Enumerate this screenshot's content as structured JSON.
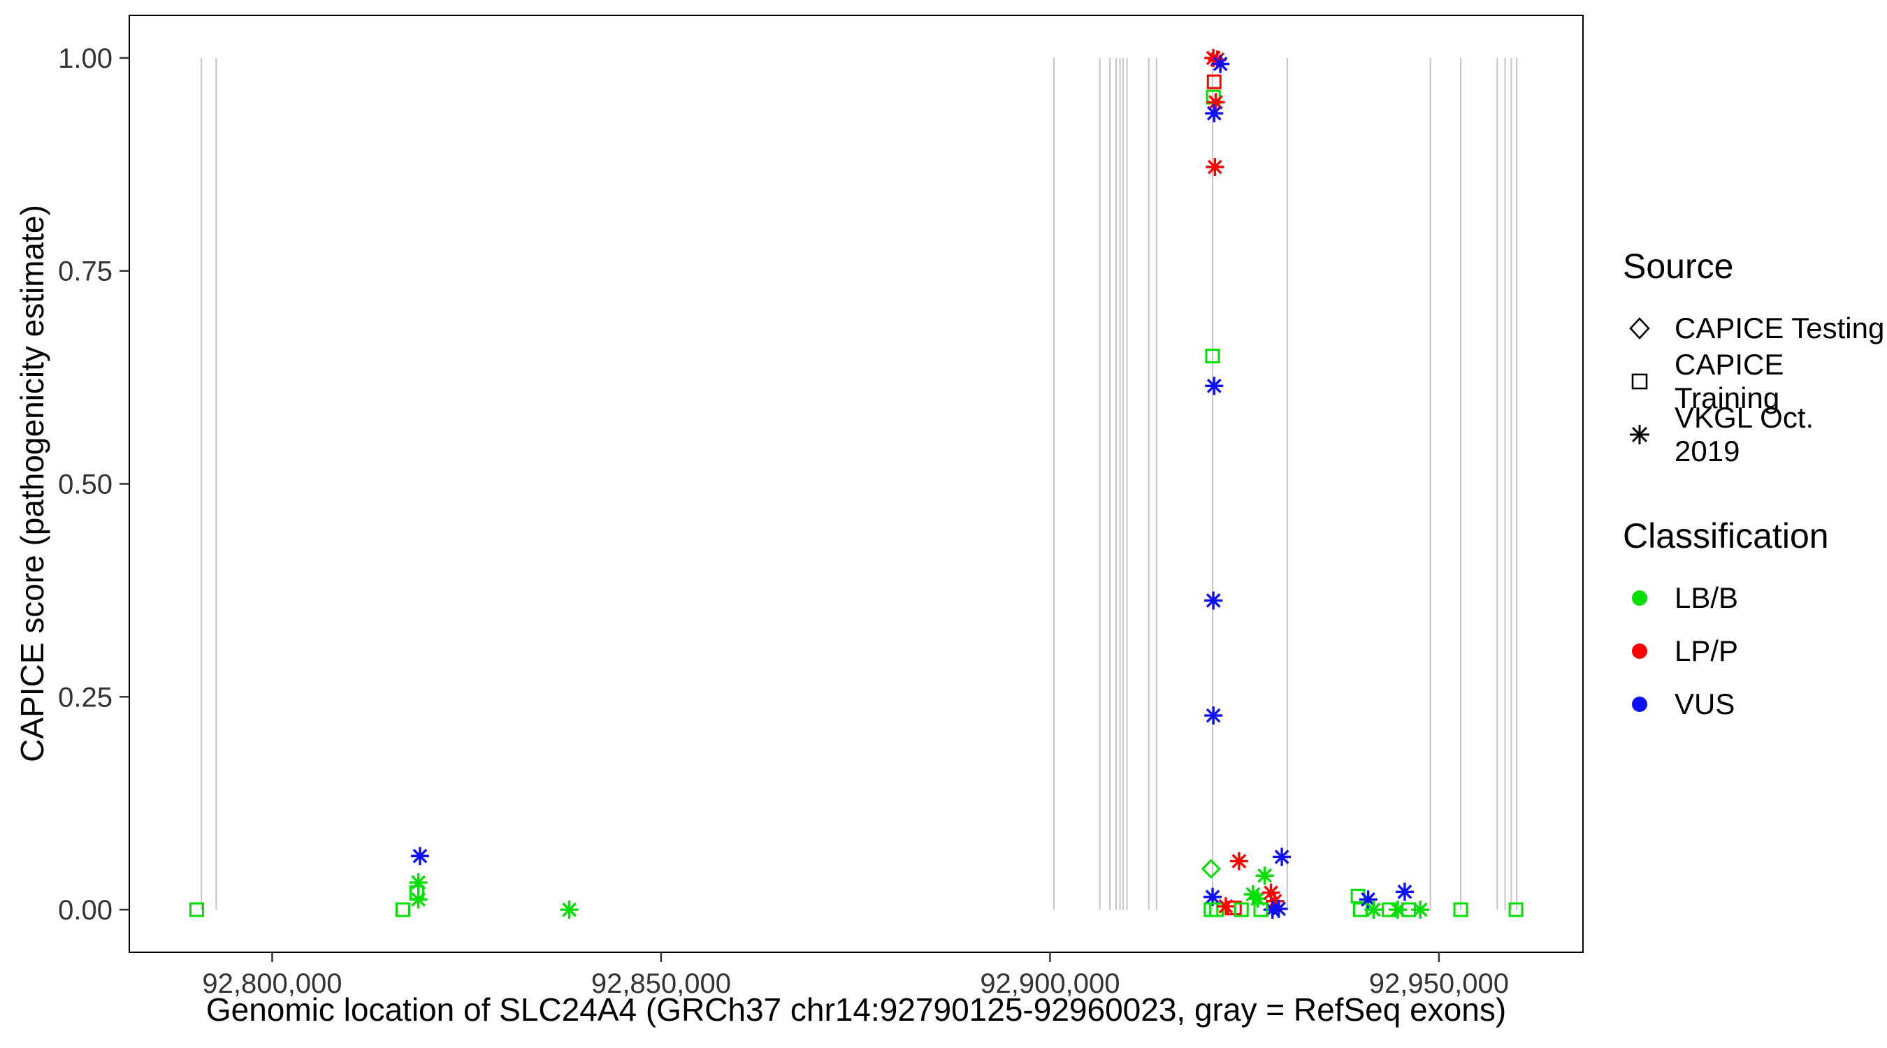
{
  "figure": {
    "x_title": "Genomic location of SLC24A4 (GRCh37 chr14:92790125-92960023, gray = RefSeq exons)",
    "y_title": "CAPICE score (pathogenicity estimate)"
  },
  "legend": {
    "source": {
      "title": "Source",
      "items": [
        {
          "label": "CAPICE Testing",
          "marker": "diamond"
        },
        {
          "label": "CAPICE Training",
          "marker": "square"
        },
        {
          "label": "VKGL Oct. 2019",
          "marker": "asterisk"
        }
      ]
    },
    "classification": {
      "title": "Classification",
      "items": [
        {
          "label": "LB/B",
          "color_key": "lbb"
        },
        {
          "label": "LP/P",
          "color_key": "lpp"
        },
        {
          "label": "VUS",
          "color_key": "vus"
        }
      ]
    }
  },
  "chart_data": {
    "type": "scatter",
    "title": "",
    "xlabel": "Genomic location of SLC24A4 (GRCh37 chr14:92790125-92960023, gray = RefSeq exons)",
    "ylabel": "CAPICE score (pathogenicity estimate)",
    "x_domain": [
      92781630,
      92968518
    ],
    "y_domain": [
      -0.05,
      1.05
    ],
    "x_ticks": [
      {
        "value": 92800000,
        "label": "92,800,000"
      },
      {
        "value": 92850000,
        "label": "92,850,000"
      },
      {
        "value": 92900000,
        "label": "92,900,000"
      },
      {
        "value": 92950000,
        "label": "92,950,000"
      }
    ],
    "y_ticks": [
      {
        "value": 0.0,
        "label": "0.00"
      },
      {
        "value": 0.25,
        "label": "0.25"
      },
      {
        "value": 0.5,
        "label": "0.50"
      },
      {
        "value": 0.75,
        "label": "0.75"
      },
      {
        "value": 1.0,
        "label": "1.00"
      }
    ],
    "exon_color": "#c4c4c4",
    "exon_y_span": [
      0.0,
      1.0
    ],
    "exon_positions": [
      92790900,
      92792800,
      92900500,
      92906400,
      92907700,
      92908500,
      92909000,
      92909400,
      92909900,
      92912700,
      92913700,
      92920900,
      92930500,
      92948900,
      92952800,
      92957500,
      92958500,
      92959300,
      92960000
    ],
    "colors": {
      "lbb": "#00e000",
      "lpp": "#ff0000",
      "vus": "#0d0dff"
    },
    "marker_by_source": {
      "testing": "diamond",
      "training": "square",
      "vkgl": "asterisk"
    },
    "points": [
      {
        "x": 92790300,
        "y": 0.0,
        "source": "training",
        "class": "lbb"
      },
      {
        "x": 92816800,
        "y": 0.0,
        "source": "training",
        "class": "lbb"
      },
      {
        "x": 92818600,
        "y": 0.02,
        "source": "training",
        "class": "lbb"
      },
      {
        "x": 92818800,
        "y": 0.012,
        "source": "vkgl",
        "class": "lbb"
      },
      {
        "x": 92818800,
        "y": 0.032,
        "source": "vkgl",
        "class": "lbb"
      },
      {
        "x": 92819000,
        "y": 0.063,
        "source": "vkgl",
        "class": "vus"
      },
      {
        "x": 92838200,
        "y": 0.0,
        "source": "vkgl",
        "class": "lbb"
      },
      {
        "x": 92921000,
        "y": 1.0,
        "source": "vkgl",
        "class": "lpp"
      },
      {
        "x": 92921500,
        "y": 0.998,
        "source": "vkgl",
        "class": "lpp"
      },
      {
        "x": 92921900,
        "y": 0.993,
        "source": "vkgl",
        "class": "vus"
      },
      {
        "x": 92921100,
        "y": 0.972,
        "source": "training",
        "class": "lpp"
      },
      {
        "x": 92921000,
        "y": 0.954,
        "source": "training",
        "class": "lbb"
      },
      {
        "x": 92921300,
        "y": 0.948,
        "source": "vkgl",
        "class": "lpp"
      },
      {
        "x": 92921100,
        "y": 0.935,
        "source": "vkgl",
        "class": "vus"
      },
      {
        "x": 92921200,
        "y": 0.872,
        "source": "vkgl",
        "class": "lpp"
      },
      {
        "x": 92920900,
        "y": 0.65,
        "source": "training",
        "class": "lbb"
      },
      {
        "x": 92921100,
        "y": 0.615,
        "source": "vkgl",
        "class": "vus"
      },
      {
        "x": 92921000,
        "y": 0.363,
        "source": "vkgl",
        "class": "vus"
      },
      {
        "x": 92921000,
        "y": 0.228,
        "source": "vkgl",
        "class": "vus"
      },
      {
        "x": 92920700,
        "y": 0.048,
        "source": "testing",
        "class": "lbb"
      },
      {
        "x": 92924300,
        "y": 0.057,
        "source": "vkgl",
        "class": "lpp"
      },
      {
        "x": 92929800,
        "y": 0.062,
        "source": "vkgl",
        "class": "vus"
      },
      {
        "x": 92927600,
        "y": 0.04,
        "source": "vkgl",
        "class": "lbb"
      },
      {
        "x": 92920900,
        "y": 0.015,
        "source": "vkgl",
        "class": "vus"
      },
      {
        "x": 92920700,
        "y": 0.0,
        "source": "training",
        "class": "lbb"
      },
      {
        "x": 92921400,
        "y": 0.0,
        "source": "training",
        "class": "lbb"
      },
      {
        "x": 92922600,
        "y": 0.004,
        "source": "vkgl",
        "class": "lpp"
      },
      {
        "x": 92923700,
        "y": 0.002,
        "source": "training",
        "class": "lpp"
      },
      {
        "x": 92924600,
        "y": 0.0,
        "source": "training",
        "class": "lbb"
      },
      {
        "x": 92926100,
        "y": 0.018,
        "source": "vkgl",
        "class": "lbb"
      },
      {
        "x": 92926700,
        "y": 0.013,
        "source": "vkgl",
        "class": "lbb"
      },
      {
        "x": 92928400,
        "y": 0.02,
        "source": "vkgl",
        "class": "lpp"
      },
      {
        "x": 92928900,
        "y": 0.01,
        "source": "vkgl",
        "class": "lpp"
      },
      {
        "x": 92928600,
        "y": 0.0,
        "source": "vkgl",
        "class": "vus"
      },
      {
        "x": 92929400,
        "y": 0.001,
        "source": "vkgl",
        "class": "vus"
      },
      {
        "x": 92927100,
        "y": 0.0,
        "source": "training",
        "class": "lbb"
      },
      {
        "x": 92939600,
        "y": 0.016,
        "source": "training",
        "class": "lbb"
      },
      {
        "x": 92939900,
        "y": 0.0,
        "source": "training",
        "class": "lbb"
      },
      {
        "x": 92940900,
        "y": 0.012,
        "source": "vkgl",
        "class": "vus"
      },
      {
        "x": 92941600,
        "y": 0.0,
        "source": "vkgl",
        "class": "lbb"
      },
      {
        "x": 92943600,
        "y": 0.0,
        "source": "training",
        "class": "lbb"
      },
      {
        "x": 92944700,
        "y": 0.0,
        "source": "vkgl",
        "class": "lbb"
      },
      {
        "x": 92945600,
        "y": 0.021,
        "source": "vkgl",
        "class": "vus"
      },
      {
        "x": 92946100,
        "y": 0.0,
        "source": "training",
        "class": "lbb"
      },
      {
        "x": 92947600,
        "y": 0.0,
        "source": "vkgl",
        "class": "lbb"
      },
      {
        "x": 92952800,
        "y": 0.0,
        "source": "training",
        "class": "lbb"
      },
      {
        "x": 92959900,
        "y": 0.0,
        "source": "training",
        "class": "lbb"
      }
    ]
  }
}
